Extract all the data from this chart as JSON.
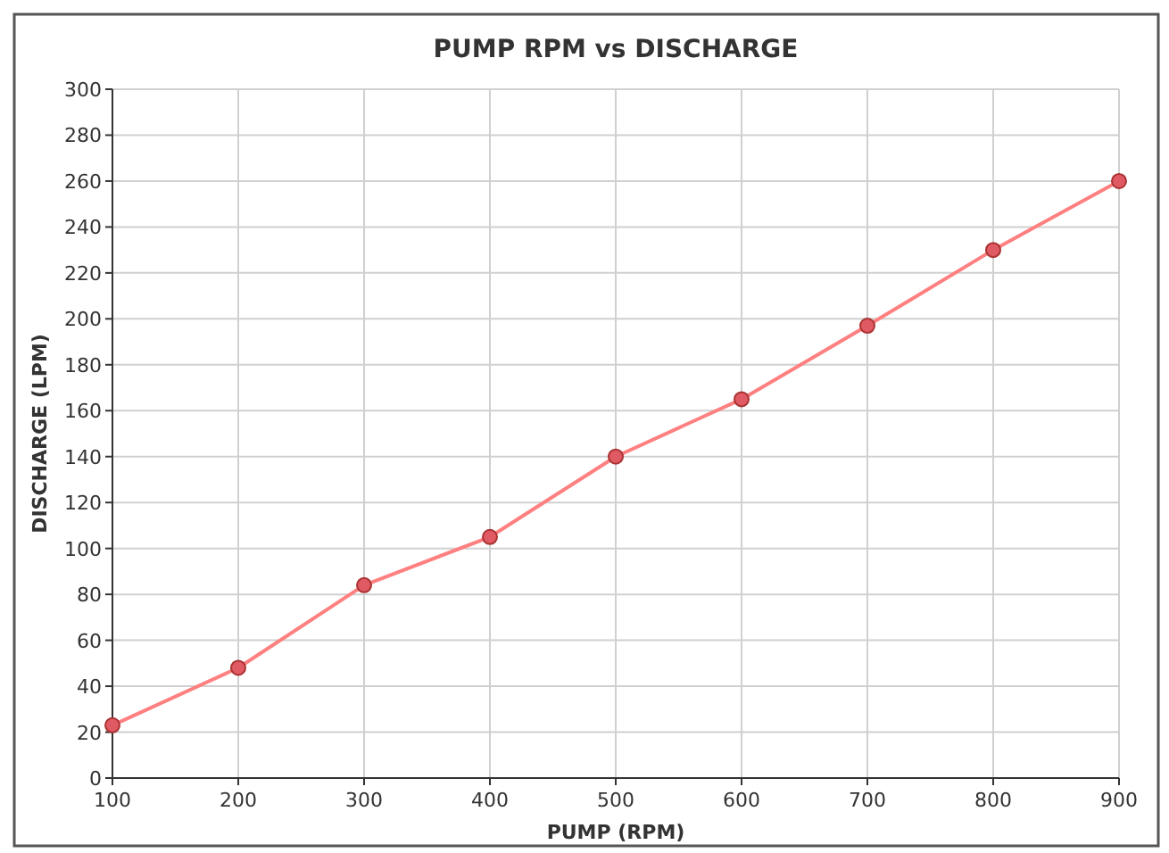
{
  "chart_data": {
    "type": "line",
    "title": "PUMP RPM vs DISCHARGE",
    "xlabel": "PUMP (RPM)",
    "ylabel": "DISCHARGE (LPM)",
    "x": [
      100,
      200,
      300,
      400,
      500,
      600,
      700,
      800,
      900
    ],
    "series": [
      {
        "color": "#ff8080",
        "values": [
          23,
          48,
          84,
          105,
          140,
          165,
          197,
          230,
          260
        ]
      }
    ],
    "xlim": [
      100,
      900
    ],
    "xticks": [
      100,
      200,
      300,
      400,
      500,
      600,
      700,
      800,
      900
    ],
    "ylim": [
      0,
      300
    ],
    "yticks": [
      0,
      20,
      40,
      60,
      80,
      100,
      120,
      140,
      160,
      180,
      200,
      220,
      240,
      260,
      280,
      300
    ],
    "grid": true,
    "marker": "circle",
    "line_style": "solid"
  }
}
